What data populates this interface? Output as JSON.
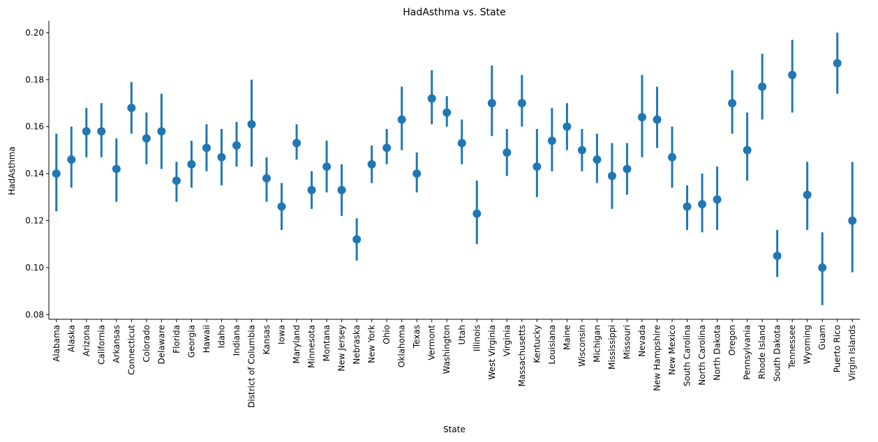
{
  "chart_data": {
    "type": "pointplot",
    "title": "HadAsthma vs. State",
    "xlabel": "State",
    "ylabel": "HadAsthma",
    "ylim": [
      0.078,
      0.205
    ],
    "yticks": [
      0.08,
      0.1,
      0.12,
      0.14,
      0.16,
      0.18,
      0.2
    ],
    "ytick_labels": [
      "0.08",
      "0.10",
      "0.12",
      "0.14",
      "0.16",
      "0.18",
      "0.20"
    ],
    "grid": false,
    "color": "#1f77b4",
    "categories": [
      "Alabama",
      "Alaska",
      "Arizona",
      "California",
      "Arkansas",
      "Connecticut",
      "Colorado",
      "Delaware",
      "Florida",
      "Georgia",
      "Hawaii",
      "Idaho",
      "Indiana",
      "District of Columbia",
      "Kansas",
      "Iowa",
      "Maryland",
      "Minnesota",
      "Montana",
      "New Jersey",
      "Nebraska",
      "New York",
      "Ohio",
      "Oklahoma",
      "Texas",
      "Vermont",
      "Washington",
      "Utah",
      "Illinois",
      "West Virginia",
      "Virginia",
      "Massachusetts",
      "Kentucky",
      "Louisiana",
      "Maine",
      "Wisconsin",
      "Michigan",
      "Mississippi",
      "Missouri",
      "Nevada",
      "New Hampshire",
      "New Mexico",
      "South Carolina",
      "North Carolina",
      "North Dakota",
      "Oregon",
      "Pennsylvania",
      "Rhode Island",
      "South Dakota",
      "Tennessee",
      "Wyoming",
      "Guam",
      "Puerto Rico",
      "Virgin Islands"
    ],
    "values": [
      0.14,
      0.146,
      0.158,
      0.158,
      0.142,
      0.168,
      0.155,
      0.158,
      0.137,
      0.144,
      0.151,
      0.147,
      0.152,
      0.161,
      0.138,
      0.126,
      0.153,
      0.133,
      0.143,
      0.133,
      0.112,
      0.144,
      0.151,
      0.163,
      0.14,
      0.172,
      0.166,
      0.153,
      0.123,
      0.17,
      0.149,
      0.17,
      0.143,
      0.154,
      0.16,
      0.15,
      0.146,
      0.139,
      0.142,
      0.164,
      0.163,
      0.147,
      0.126,
      0.127,
      0.129,
      0.17,
      0.15,
      0.177,
      0.105,
      0.182,
      0.131,
      0.1,
      0.187,
      0.12
    ],
    "ci_low": [
      0.124,
      0.134,
      0.147,
      0.147,
      0.128,
      0.157,
      0.144,
      0.142,
      0.128,
      0.134,
      0.141,
      0.135,
      0.143,
      0.143,
      0.128,
      0.116,
      0.146,
      0.125,
      0.132,
      0.122,
      0.103,
      0.136,
      0.144,
      0.15,
      0.132,
      0.161,
      0.16,
      0.144,
      0.11,
      0.156,
      0.139,
      0.16,
      0.13,
      0.141,
      0.15,
      0.141,
      0.136,
      0.125,
      0.131,
      0.147,
      0.151,
      0.134,
      0.116,
      0.115,
      0.116,
      0.157,
      0.137,
      0.163,
      0.096,
      0.166,
      0.116,
      0.084,
      0.174,
      0.098
    ],
    "ci_high": [
      0.157,
      0.16,
      0.168,
      0.17,
      0.155,
      0.179,
      0.166,
      0.174,
      0.145,
      0.154,
      0.161,
      0.159,
      0.162,
      0.18,
      0.147,
      0.136,
      0.161,
      0.141,
      0.154,
      0.144,
      0.121,
      0.152,
      0.159,
      0.177,
      0.149,
      0.184,
      0.173,
      0.163,
      0.137,
      0.186,
      0.159,
      0.182,
      0.159,
      0.168,
      0.17,
      0.159,
      0.157,
      0.153,
      0.153,
      0.182,
      0.177,
      0.16,
      0.135,
      0.14,
      0.143,
      0.184,
      0.166,
      0.191,
      0.116,
      0.197,
      0.145,
      0.115,
      0.2,
      0.145
    ]
  }
}
